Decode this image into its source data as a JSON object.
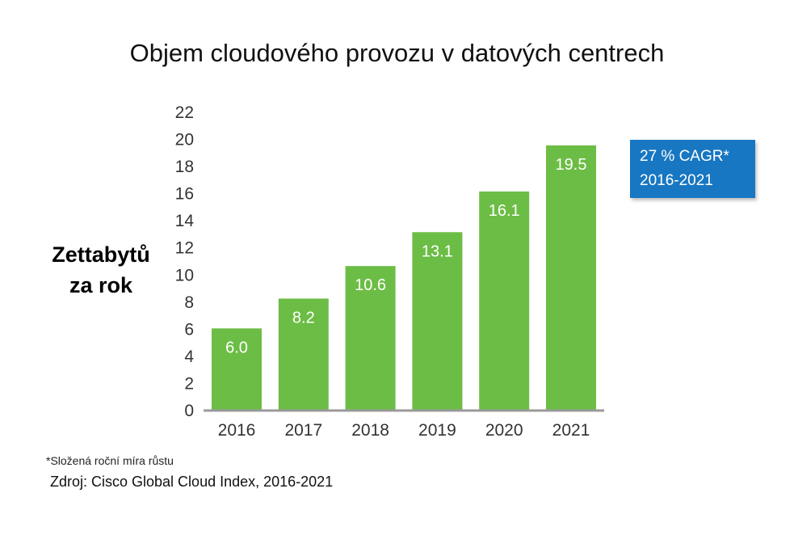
{
  "chart_data": {
    "type": "bar",
    "title": "Objem cloudového provozu v datových centrech",
    "ylabel_lines": [
      "Zettabytů",
      "za rok"
    ],
    "xlabel": "",
    "categories": [
      "2016",
      "2017",
      "2018",
      "2019",
      "2020",
      "2021"
    ],
    "values": [
      6.0,
      8.2,
      10.6,
      13.1,
      16.1,
      19.5
    ],
    "value_labels": [
      "6.0",
      "8.2",
      "10.6",
      "13.1",
      "16.1",
      "19.5"
    ],
    "y_ticks": [
      0,
      2,
      4,
      6,
      8,
      10,
      12,
      14,
      16,
      18,
      20,
      22
    ],
    "ylim": [
      0,
      22
    ],
    "grid": false,
    "bar_color": "#6cbd45"
  },
  "callout": {
    "line1": "27 % CAGR*",
    "line2": "2016-2021",
    "color": "#1877c2"
  },
  "footnote": "*Složená roční míra růstu",
  "source": "Zdroj: Cisco Global Cloud Index, 2016-2021"
}
